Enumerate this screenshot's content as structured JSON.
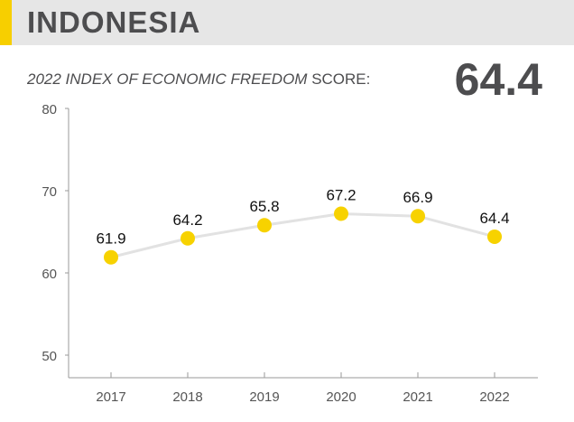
{
  "header": {
    "country": "INDONESIA",
    "accent_color": "#f7cf00"
  },
  "score": {
    "label_italic": "2022 INDEX OF ECONOMIC FREEDOM",
    "label_rest": " SCORE:",
    "value": "64.4"
  },
  "chart_data": {
    "type": "line",
    "categories": [
      "2017",
      "2018",
      "2019",
      "2020",
      "2021",
      "2022"
    ],
    "values": [
      61.9,
      64.2,
      65.8,
      67.2,
      66.9,
      64.4
    ],
    "value_labels": [
      "61.9",
      "64.2",
      "65.8",
      "67.2",
      "66.9",
      "64.4"
    ],
    "ylim": [
      50,
      80
    ],
    "yticks": [
      80,
      70,
      60,
      50
    ],
    "ytick_labels": [
      "80",
      "70",
      "60",
      "50"
    ],
    "grid": false,
    "line_color": "#e2e2e2",
    "marker_color": "#f7d200",
    "axis_color": "#9a9a9a"
  }
}
